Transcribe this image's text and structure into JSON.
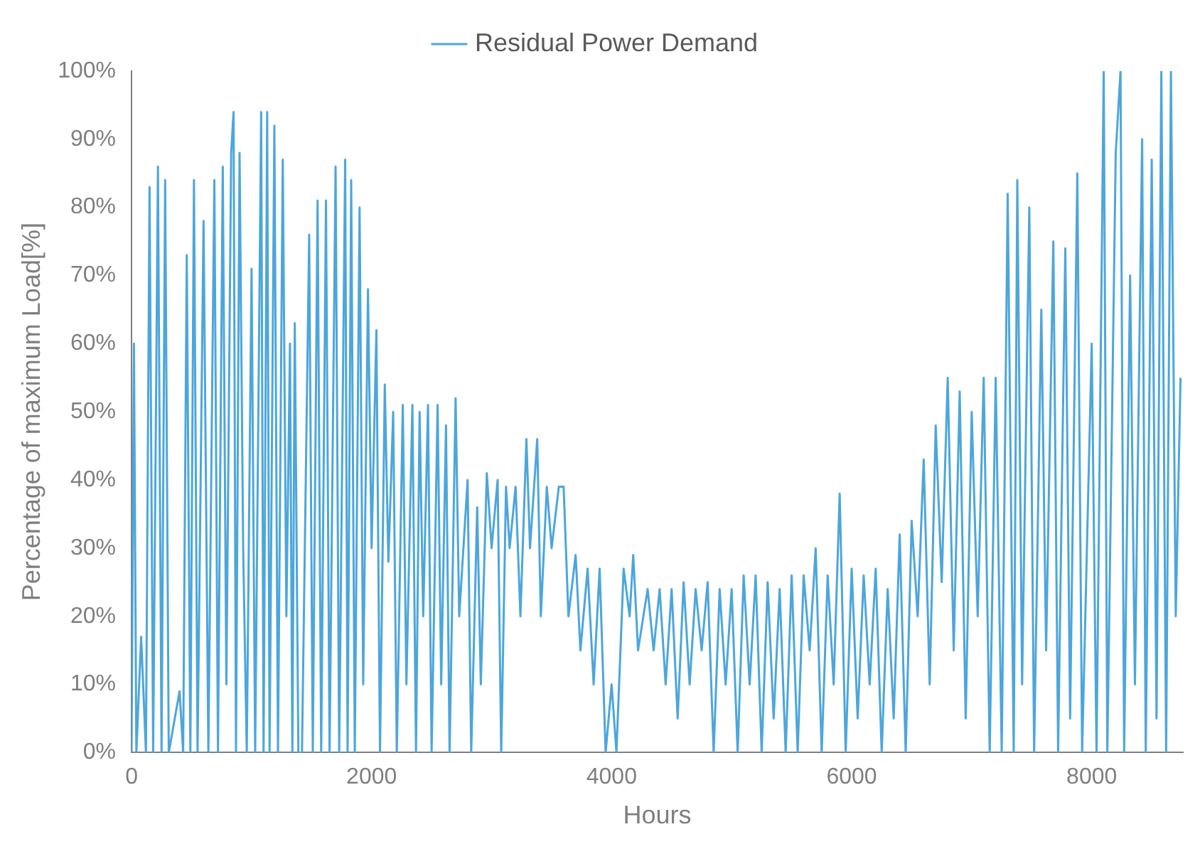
{
  "chart_data": {
    "type": "line",
    "xlabel": "Hours",
    "ylabel": "Percentage of maximum Load[%]",
    "legend": "top",
    "grid": false,
    "marker": "none",
    "line_style": "solid",
    "xlim": [
      0,
      8760
    ],
    "xticks": [
      0,
      2000,
      4000,
      6000,
      8000
    ],
    "ylim": [
      0,
      100
    ],
    "yticks": [
      {
        "value": 0,
        "label": "0%"
      },
      {
        "value": 10,
        "label": "10%"
      },
      {
        "value": 20,
        "label": "20%"
      },
      {
        "value": 30,
        "label": "30%"
      },
      {
        "value": 40,
        "label": "40%"
      },
      {
        "value": 50,
        "label": "50%"
      },
      {
        "value": 60,
        "label": "60%"
      },
      {
        "value": 70,
        "label": "70%"
      },
      {
        "value": 80,
        "label": "80%"
      },
      {
        "value": 90,
        "label": "90%"
      },
      {
        "value": 100,
        "label": "100%"
      }
    ],
    "series": [
      {
        "name": "Residual Power Demand",
        "color": "#4ca6dc",
        "x": [
          0,
          20,
          40,
          80,
          120,
          150,
          180,
          220,
          250,
          280,
          310,
          360,
          400,
          430,
          460,
          490,
          520,
          550,
          600,
          640,
          690,
          720,
          760,
          790,
          830,
          850,
          870,
          900,
          930,
          960,
          1000,
          1030,
          1080,
          1100,
          1130,
          1150,
          1190,
          1220,
          1260,
          1290,
          1320,
          1340,
          1360,
          1390,
          1420,
          1480,
          1510,
          1550,
          1580,
          1620,
          1650,
          1700,
          1730,
          1780,
          1800,
          1830,
          1860,
          1900,
          1930,
          1970,
          2000,
          2040,
          2070,
          2110,
          2140,
          2180,
          2210,
          2260,
          2290,
          2340,
          2370,
          2400,
          2430,
          2470,
          2500,
          2550,
          2580,
          2620,
          2650,
          2700,
          2730,
          2800,
          2830,
          2880,
          2910,
          2960,
          3000,
          3050,
          3080,
          3120,
          3150,
          3200,
          3240,
          3290,
          3320,
          3380,
          3410,
          3460,
          3500,
          3560,
          3600,
          3640,
          3700,
          3740,
          3800,
          3850,
          3900,
          3950,
          4000,
          4040,
          4100,
          4150,
          4180,
          4220,
          4300,
          4350,
          4400,
          4450,
          4500,
          4550,
          4600,
          4650,
          4700,
          4750,
          4800,
          4850,
          4900,
          4950,
          5000,
          5050,
          5100,
          5150,
          5200,
          5250,
          5300,
          5350,
          5400,
          5450,
          5500,
          5550,
          5600,
          5650,
          5700,
          5750,
          5800,
          5850,
          5900,
          5950,
          6000,
          6050,
          6100,
          6150,
          6200,
          6250,
          6300,
          6350,
          6400,
          6450,
          6500,
          6550,
          6600,
          6650,
          6700,
          6750,
          6800,
          6850,
          6900,
          6950,
          7000,
          7050,
          7100,
          7150,
          7200,
          7250,
          7300,
          7350,
          7380,
          7420,
          7480,
          7520,
          7580,
          7620,
          7680,
          7720,
          7780,
          7820,
          7880,
          7920,
          8000,
          8040,
          8100,
          8130,
          8200,
          8240,
          8270,
          8320,
          8360,
          8420,
          8450,
          8500,
          8540,
          8580,
          8620,
          8660,
          8700,
          8740
        ],
        "values": [
          0,
          60,
          0,
          17,
          0,
          83,
          0,
          86,
          0,
          84,
          0,
          5,
          9,
          0,
          73,
          0,
          84,
          0,
          78,
          0,
          84,
          0,
          86,
          10,
          88,
          94,
          0,
          88,
          30,
          0,
          71,
          0,
          94,
          0,
          94,
          0,
          92,
          0,
          87,
          20,
          60,
          0,
          63,
          0,
          0,
          76,
          0,
          81,
          0,
          81,
          0,
          86,
          0,
          87,
          0,
          84,
          0,
          80,
          10,
          68,
          30,
          62,
          0,
          54,
          28,
          50,
          0,
          51,
          10,
          51,
          0,
          50,
          20,
          51,
          0,
          51,
          10,
          48,
          0,
          52,
          20,
          40,
          0,
          36,
          10,
          41,
          30,
          40,
          0,
          39,
          30,
          39,
          20,
          46,
          30,
          46,
          20,
          39,
          30,
          39,
          39,
          20,
          29,
          15,
          27,
          10,
          27,
          0,
          10,
          0,
          27,
          20,
          29,
          15,
          24,
          15,
          24,
          10,
          24,
          5,
          25,
          10,
          24,
          15,
          25,
          0,
          24,
          10,
          24,
          0,
          26,
          10,
          26,
          0,
          25,
          5,
          24,
          0,
          26,
          0,
          26,
          15,
          30,
          0,
          26,
          10,
          38,
          0,
          27,
          5,
          26,
          10,
          27,
          0,
          24,
          5,
          32,
          0,
          34,
          20,
          43,
          10,
          48,
          25,
          55,
          15,
          53,
          5,
          50,
          20,
          55,
          0,
          55,
          0,
          82,
          0,
          84,
          10,
          80,
          0,
          65,
          15,
          75,
          0,
          74,
          5,
          85,
          0,
          60,
          0,
          100,
          0,
          88,
          100,
          0,
          70,
          10,
          90,
          0,
          87,
          5,
          100,
          0,
          100,
          20,
          55
        ]
      }
    ]
  }
}
